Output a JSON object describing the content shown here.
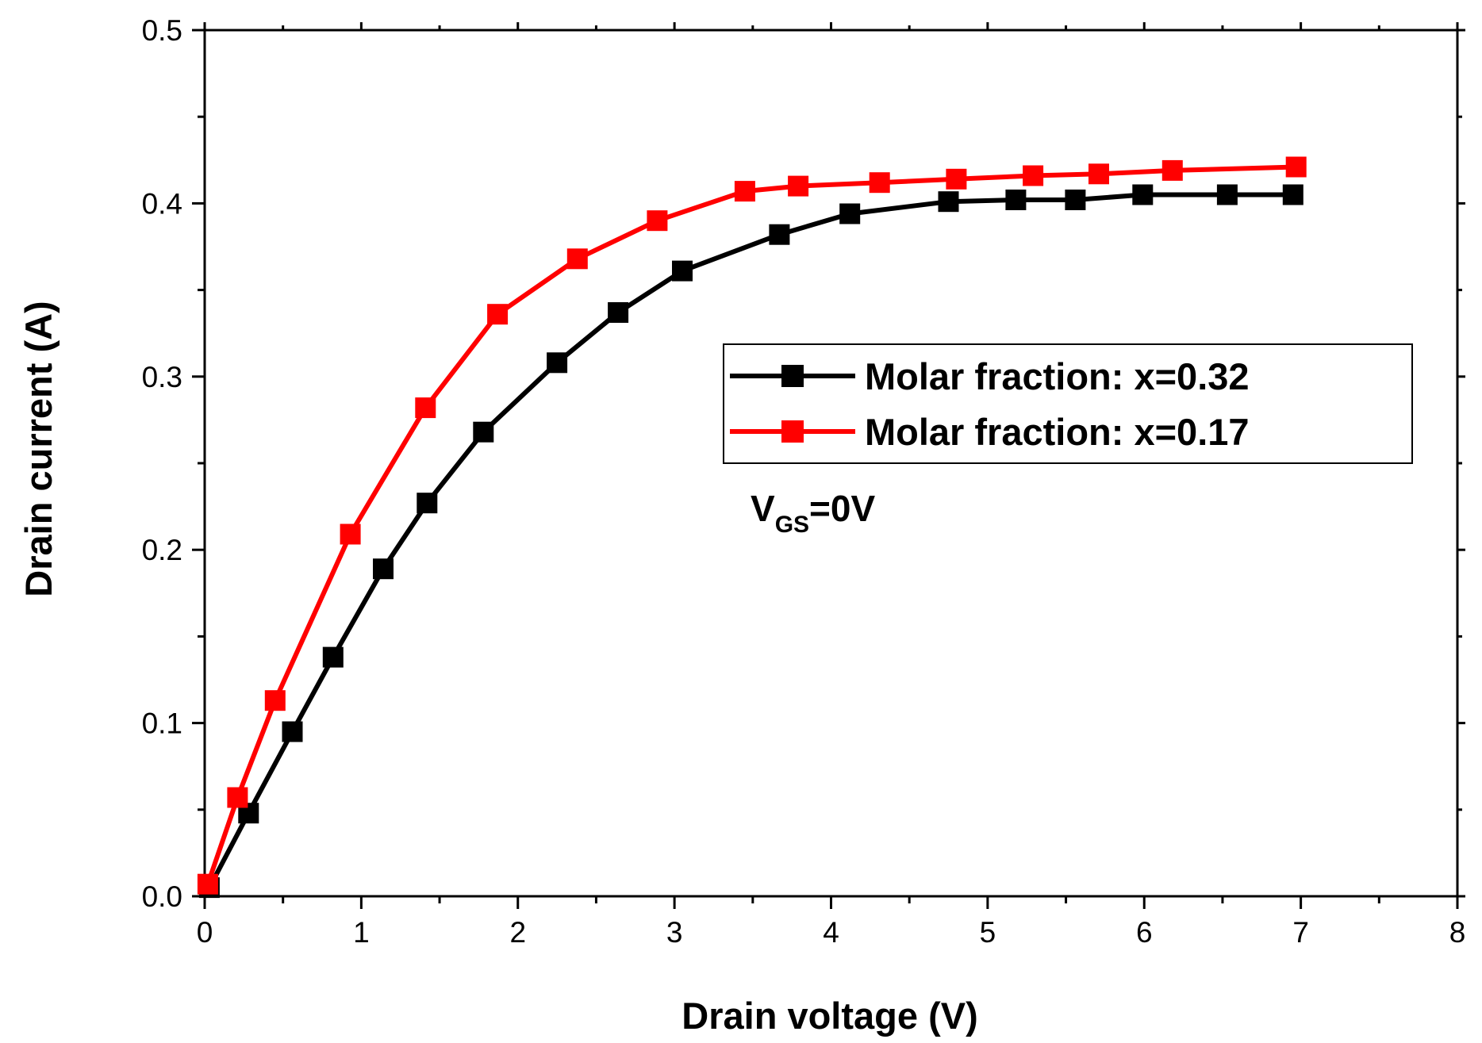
{
  "chart_data": {
    "type": "line",
    "title": "",
    "xlabel": "Drain voltage (V)",
    "ylabel": "Drain current (A)",
    "xlim": [
      0,
      8
    ],
    "ylim": [
      0,
      0.5
    ],
    "xticks": [
      "0",
      "1",
      "2",
      "3",
      "4",
      "5",
      "6",
      "7",
      "8"
    ],
    "yticks": [
      "0.0",
      "0.1",
      "0.2",
      "0.3",
      "0.4",
      "0.5"
    ],
    "grid": false,
    "legend_position": "center-right",
    "annotation": {
      "main": "V",
      "sub": "GS",
      "suffix": "=0V"
    },
    "series": [
      {
        "name": "Molar fraction: x=0.32",
        "color": "#000000",
        "marker": "square",
        "x": [
          0.03,
          0.28,
          0.56,
          0.82,
          1.14,
          1.42,
          1.78,
          2.25,
          2.64,
          3.05,
          3.67,
          4.12,
          4.75,
          5.18,
          5.56,
          5.99,
          6.53,
          6.95
        ],
        "y": [
          0.005,
          0.048,
          0.095,
          0.138,
          0.189,
          0.227,
          0.268,
          0.308,
          0.337,
          0.361,
          0.382,
          0.394,
          0.401,
          0.402,
          0.402,
          0.405,
          0.405,
          0.405
        ]
      },
      {
        "name": "Molar fraction: x=0.17",
        "color": "#ff0000",
        "marker": "square",
        "x": [
          0.02,
          0.21,
          0.45,
          0.93,
          1.41,
          1.87,
          2.38,
          2.89,
          3.45,
          3.79,
          4.31,
          4.8,
          5.29,
          5.71,
          6.18,
          6.97
        ],
        "y": [
          0.007,
          0.057,
          0.113,
          0.209,
          0.282,
          0.336,
          0.368,
          0.39,
          0.407,
          0.41,
          0.412,
          0.414,
          0.416,
          0.417,
          0.419,
          0.421
        ]
      }
    ]
  }
}
